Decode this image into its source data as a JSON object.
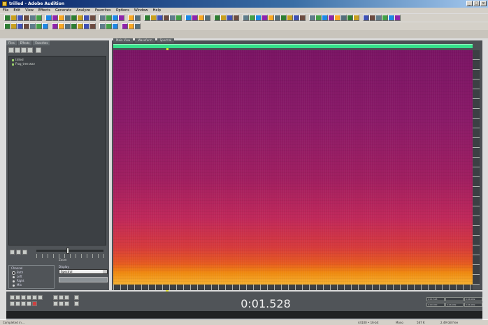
{
  "window": {
    "title": "trilled - Adobe Audition",
    "buttons": [
      "_",
      "□",
      "×"
    ]
  },
  "menu": [
    "File",
    "Edit",
    "View",
    "Effects",
    "Generate",
    "Analyze",
    "Favorites",
    "Options",
    "Window",
    "Help"
  ],
  "left_panel": {
    "tabs": [
      "Files",
      "Effects",
      "Favorites"
    ],
    "files": [
      "trilled",
      "Frog_tree.wav"
    ],
    "zoom_label": "Zoom",
    "channel": {
      "header": "Channel",
      "options": [
        "Both",
        "Left",
        "Right",
        "Mix"
      ],
      "selected": "Both"
    },
    "display": {
      "header": "Display",
      "selected": "Spectral"
    }
  },
  "main": {
    "tabs": [
      "Main View",
      "Waveform",
      "Spectral"
    ]
  },
  "transport": {
    "time": "0:01.528"
  },
  "selection": {
    "cells": [
      "0:01.528",
      "",
      "0:06.969",
      "0:00.000",
      "0:06.969",
      "0:06.969"
    ]
  },
  "status": [
    "Completed in ...",
    "44100 • 16-bit",
    "Mono",
    "587 K",
    "2.49 GB free"
  ],
  "colors": {
    "panel": "#505458",
    "overview": "#36e08a",
    "spectral_low": "#7a1464",
    "spectral_high": "#f4b030",
    "playhead": "#e0e030"
  }
}
